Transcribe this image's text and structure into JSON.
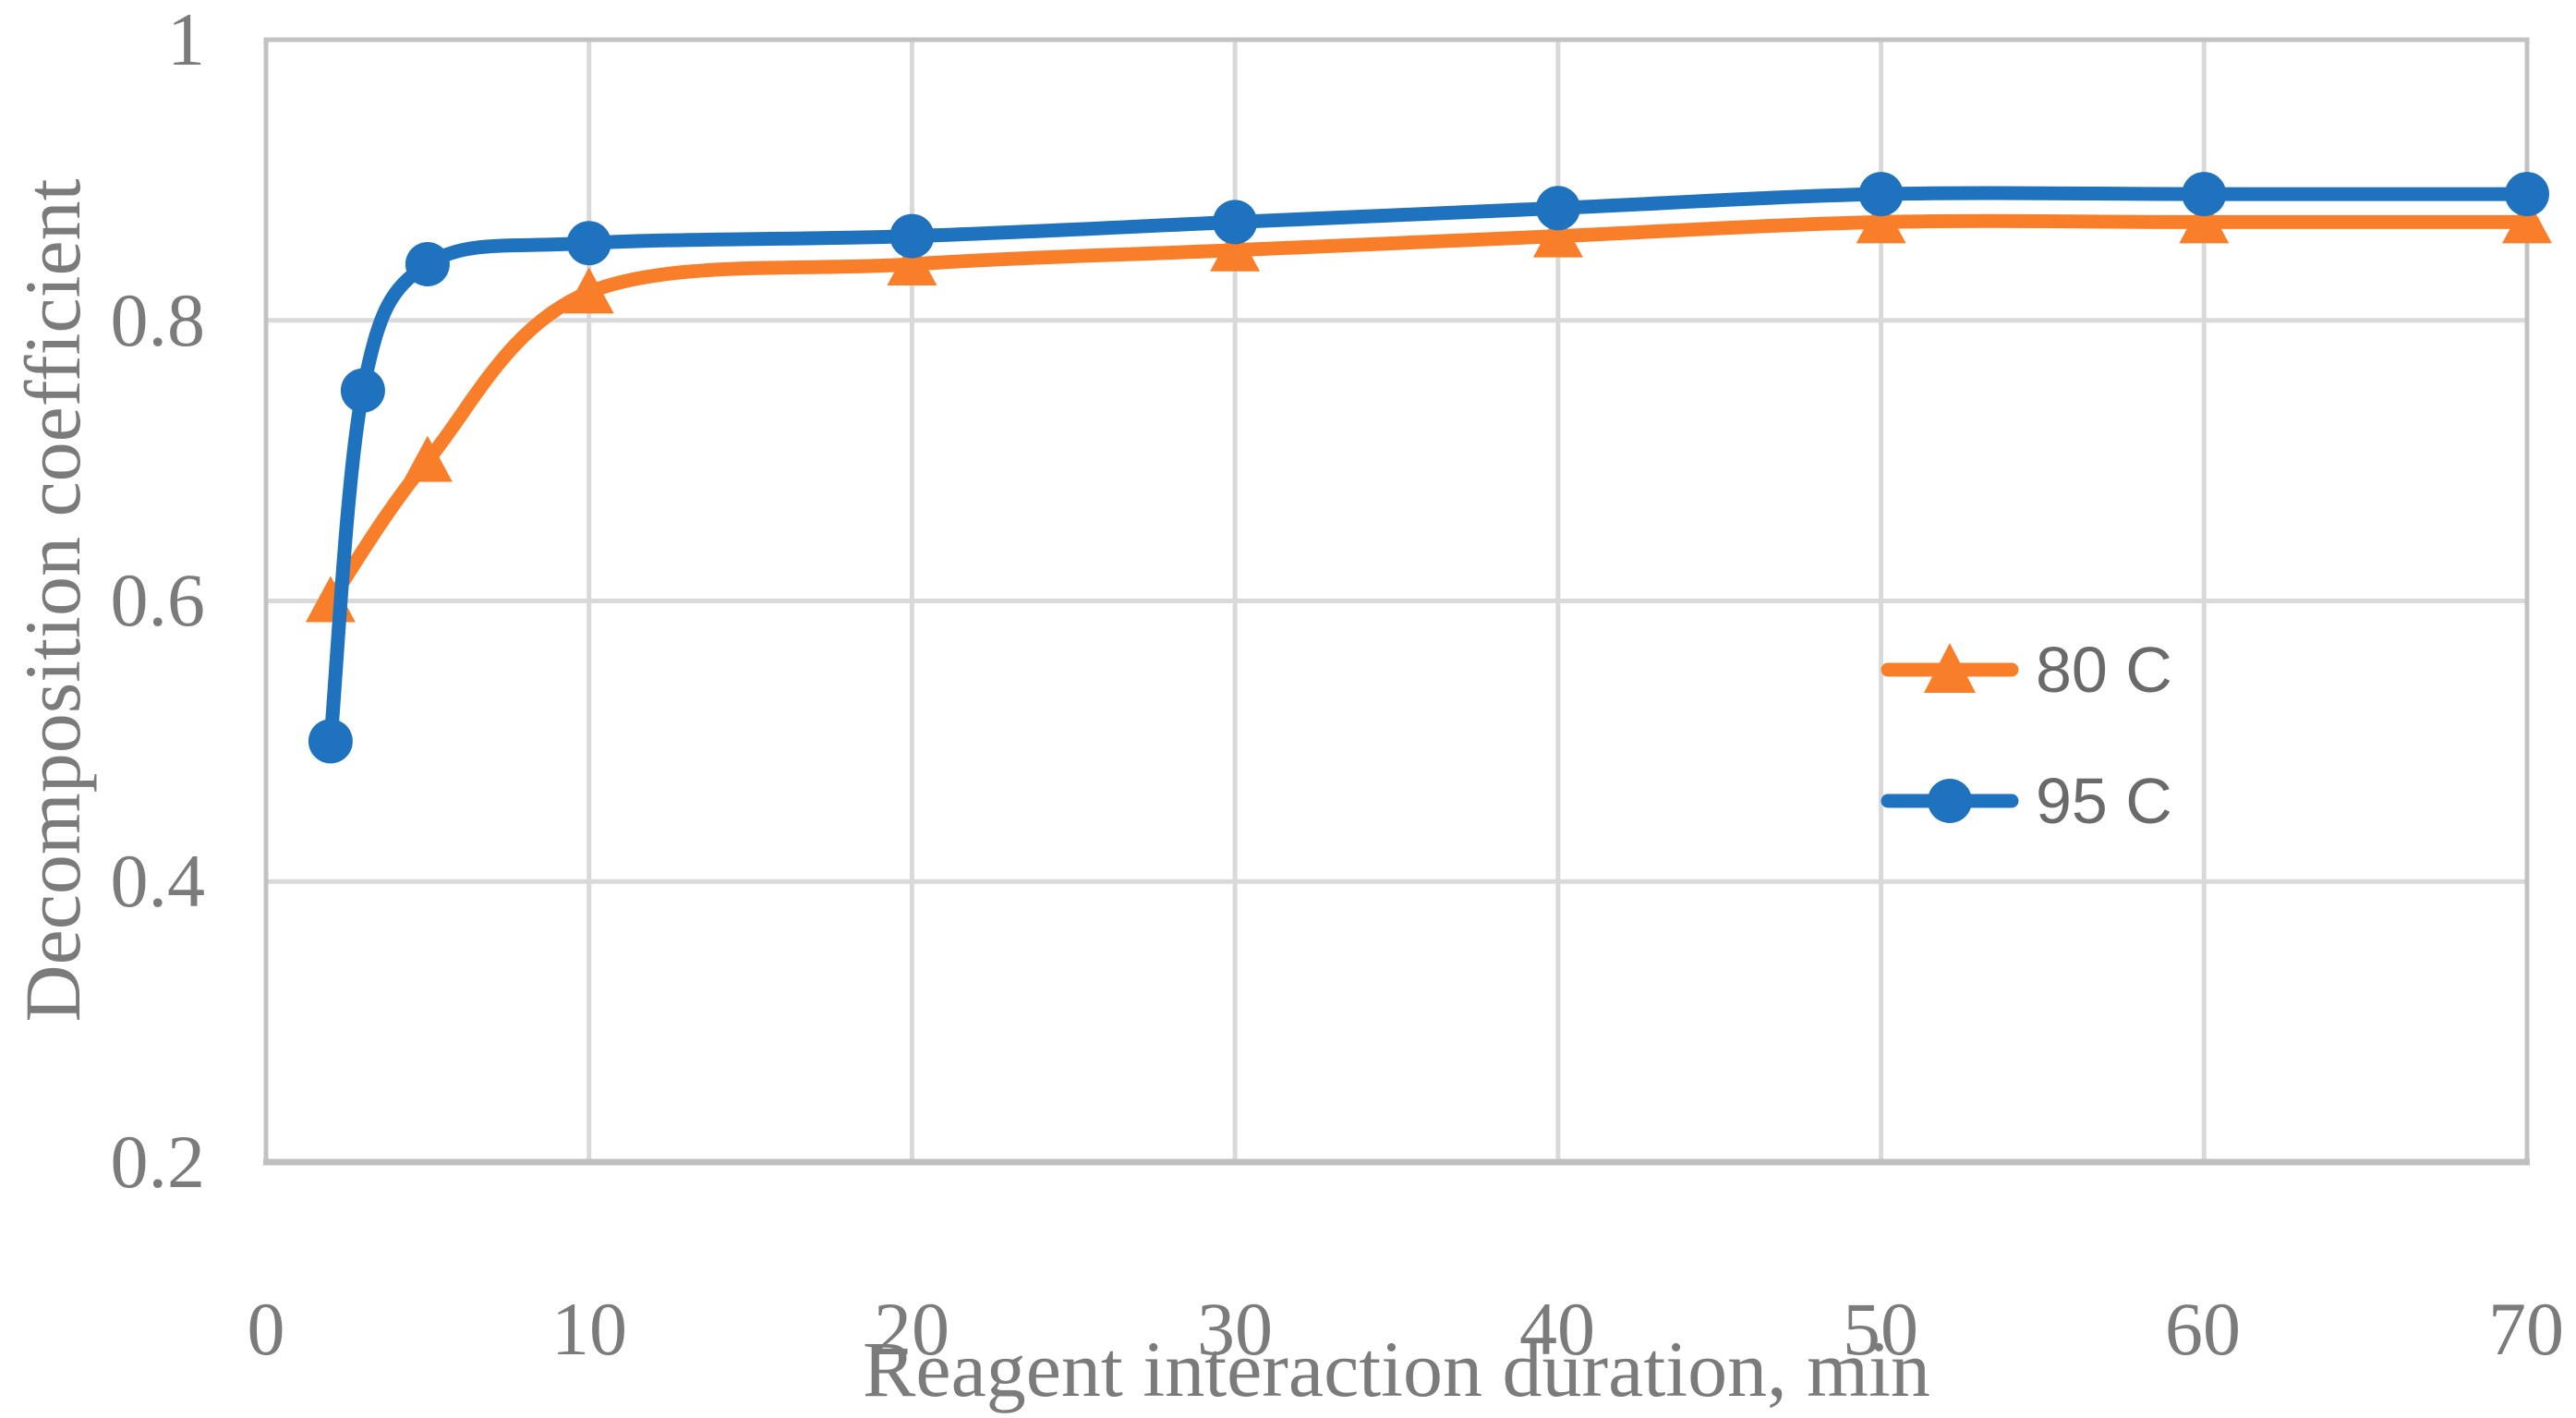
{
  "chart_data": {
    "type": "line",
    "title": "",
    "xlabel": "Reagent interaction duration, min",
    "ylabel": "Decomposition coefficient",
    "xlim": [
      0,
      70
    ],
    "ylim": [
      0.2,
      1.0
    ],
    "x_tick_labels": [
      "0",
      "10",
      "20",
      "30",
      "40",
      "50",
      "60",
      "70"
    ],
    "x_tick_values": [
      0,
      10,
      20,
      30,
      40,
      50,
      60,
      70
    ],
    "y_tick_labels": [
      "1",
      "0.8",
      "0.6",
      "0.4",
      "0.2"
    ],
    "y_tick_values": [
      1.0,
      0.8,
      0.6,
      0.4,
      0.2
    ],
    "grid": true,
    "legend_position": "inside-right",
    "line_style": "smoothed",
    "series": [
      {
        "name": "80 C",
        "color": "#f97e2a",
        "marker": "triangle",
        "x": [
          2,
          5,
          10,
          20,
          30,
          40,
          50,
          60,
          70
        ],
        "y": [
          0.6,
          0.7,
          0.82,
          0.84,
          0.85,
          0.86,
          0.87,
          0.87,
          0.87
        ]
      },
      {
        "name": "95 C",
        "color": "#1f72bd",
        "marker": "circle",
        "x": [
          2,
          3,
          5,
          10,
          20,
          30,
          40,
          50,
          60,
          70
        ],
        "y": [
          0.5,
          0.75,
          0.84,
          0.855,
          0.86,
          0.87,
          0.88,
          0.89,
          0.89,
          0.89
        ]
      }
    ],
    "colors": {
      "gridline": "#d9d9d9",
      "plot_border": "#c2c2c2",
      "axis_line": "#bfbfbf",
      "tick_label": "#7b7b7b",
      "axis_title": "#7b7b7b",
      "legend_text": "#6a6a6a",
      "background": "#ffffff"
    }
  }
}
